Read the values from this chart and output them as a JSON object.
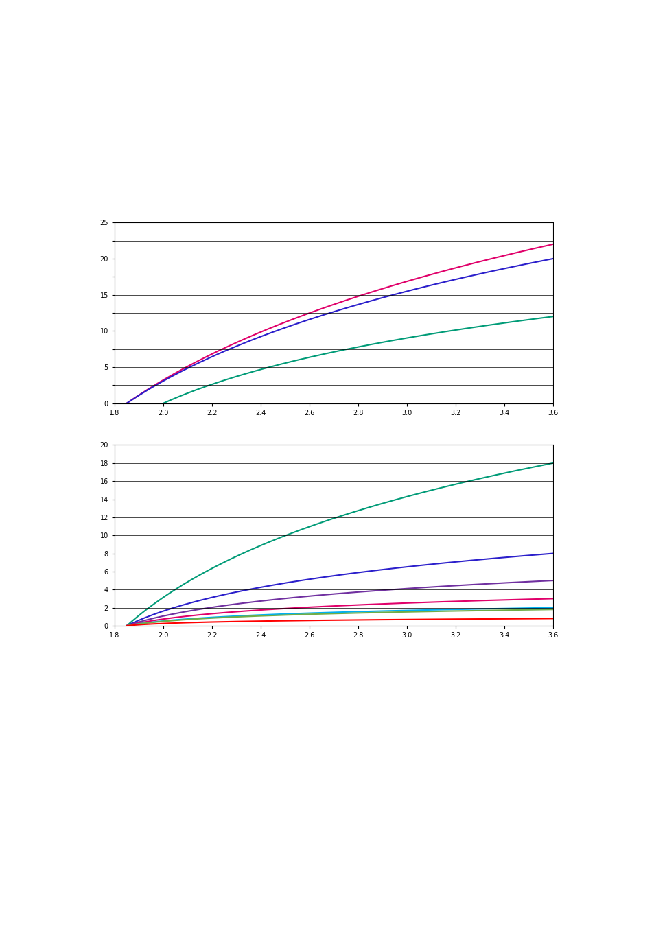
{
  "chart1": {
    "title": "",
    "xlabel": "",
    "ylabel": "",
    "xlim": [
      1.8,
      3.6
    ],
    "ylim": [
      0,
      25
    ],
    "yticks": [
      0,
      2.5,
      5,
      7.5,
      10,
      12.5,
      15,
      17.5,
      20,
      22.5,
      25
    ],
    "xticks": [
      1.8,
      2.0,
      2.2,
      2.4,
      2.6,
      2.8,
      3.0,
      3.2,
      3.4,
      3.6
    ],
    "lines": [
      {
        "color": "#E0006A",
        "x_start": 1.85,
        "a": 22,
        "b": 1.2
      },
      {
        "color": "#2B1FCB",
        "x_start": 1.85,
        "a": 20,
        "b": 1.4
      },
      {
        "color": "#009B77",
        "x_start": 2.0,
        "a": 12,
        "b": 1.6
      }
    ]
  },
  "chart2": {
    "title": "",
    "xlabel": "",
    "ylabel": "",
    "xlim": [
      1.8,
      3.6
    ],
    "ylim": [
      0,
      20
    ],
    "yticks": [
      0,
      2,
      4,
      6,
      8,
      10,
      12,
      14,
      16,
      18,
      20
    ],
    "xticks": [
      1.8,
      2.0,
      2.2,
      2.4,
      2.6,
      2.8,
      3.0,
      3.2,
      3.4,
      3.6
    ],
    "lines": [
      {
        "color": "#009B77",
        "x_start": 1.85,
        "a": 18,
        "b": 2.0
      },
      {
        "color": "#2B1FCB",
        "x_start": 1.85,
        "a": 8,
        "b": 3.0
      },
      {
        "color": "#7030A0",
        "x_start": 1.85,
        "a": 5,
        "b": 3.5
      },
      {
        "color": "#E0006A",
        "x_start": 1.85,
        "a": 3,
        "b": 5.0
      },
      {
        "color": "#00B0F0",
        "x_start": 1.85,
        "a": 2.0,
        "b": 6.0
      },
      {
        "color": "#70AD47",
        "x_start": 1.85,
        "a": 1.8,
        "b": 6.5
      },
      {
        "color": "#FF0000",
        "x_start": 1.85,
        "a": 0.8,
        "b": 10.0
      }
    ]
  },
  "bg_color": "#ffffff",
  "grid_color": "#000000",
  "page_bg": "#ffffff"
}
